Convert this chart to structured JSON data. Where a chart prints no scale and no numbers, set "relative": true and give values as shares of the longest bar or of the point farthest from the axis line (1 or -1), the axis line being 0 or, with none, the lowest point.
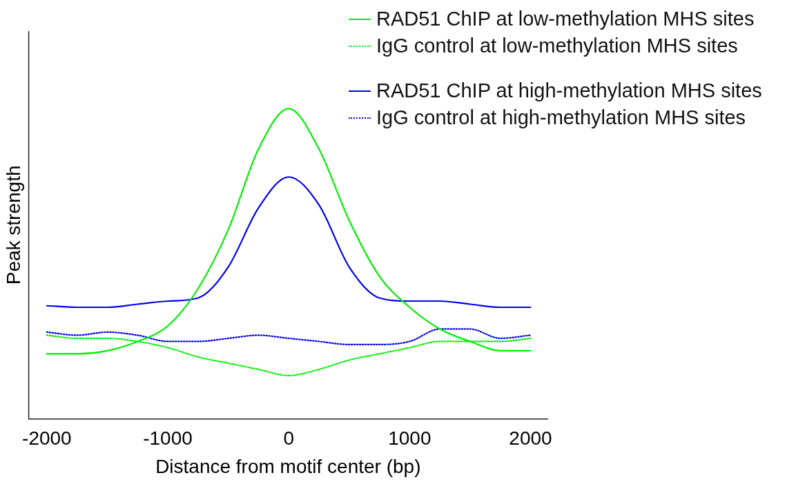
{
  "chart_data": {
    "type": "line",
    "relative": true,
    "xlabel": "Distance from motif center (bp)",
    "ylabel": "Peak strength",
    "x": [
      -2000,
      -1750,
      -1500,
      -1250,
      -1000,
      -750,
      -500,
      -250,
      0,
      250,
      500,
      750,
      1000,
      1250,
      1500,
      1750,
      2000
    ],
    "xlim": [
      -2150,
      2140
    ],
    "xticks": [
      -2000,
      -1000,
      0,
      1000,
      2000
    ],
    "legend": "top right",
    "grid": false,
    "marker": "none",
    "series": [
      {
        "name": "RAD51 ChIP at low-methylation MHS sites",
        "color": "#00ee00",
        "line_style": "solid",
        "values": [
          0.21,
          0.21,
          0.22,
          0.25,
          0.3,
          0.42,
          0.61,
          0.87,
          1.0,
          0.87,
          0.64,
          0.46,
          0.36,
          0.29,
          0.25,
          0.22,
          0.22
        ]
      },
      {
        "name": "IgG control at low-methylation MHS sites",
        "color": "#00ee00",
        "line_style": "dotted",
        "values": [
          0.27,
          0.26,
          0.26,
          0.25,
          0.23,
          0.2,
          0.18,
          0.16,
          0.14,
          0.16,
          0.19,
          0.21,
          0.23,
          0.25,
          0.25,
          0.25,
          0.26
        ]
      },
      {
        "name": "RAD51 ChIP at high-methylation MHS sites",
        "color": "#0000ee",
        "line_style": "solid",
        "values": [
          0.365,
          0.36,
          0.36,
          0.37,
          0.38,
          0.39,
          0.49,
          0.68,
          0.78,
          0.69,
          0.49,
          0.39,
          0.38,
          0.38,
          0.37,
          0.36,
          0.36
        ]
      },
      {
        "name": "IgG control at high-methylation MHS sites",
        "color": "#0000ee",
        "line_style": "dotted",
        "values": [
          0.28,
          0.27,
          0.28,
          0.27,
          0.25,
          0.25,
          0.26,
          0.27,
          0.26,
          0.25,
          0.24,
          0.24,
          0.25,
          0.29,
          0.29,
          0.26,
          0.27
        ]
      }
    ]
  }
}
